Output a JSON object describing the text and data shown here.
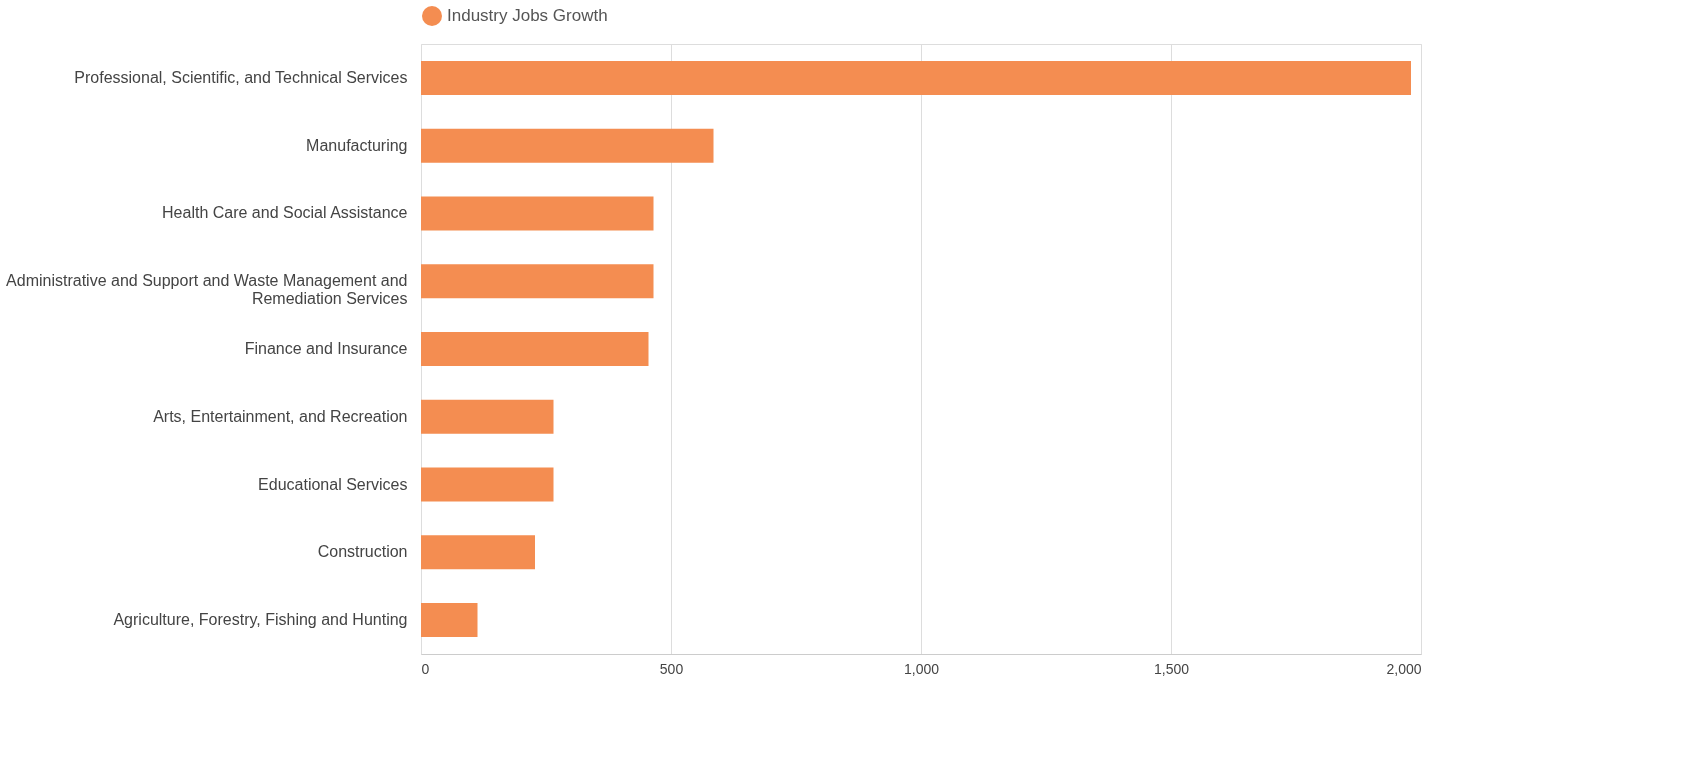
{
  "chart_data": {
    "type": "bar",
    "orientation": "horizontal",
    "categories": [
      "Professional, Scientific, and Technical Services",
      "Manufacturing",
      "Health Care and Social Assistance",
      "Administrative and Support and Waste Management and Remediation Services",
      "Finance and Insurance",
      "Arts, Entertainment, and Recreation",
      "Educational Services",
      "Construction",
      "Agriculture, Forestry, Fishing and Hunting"
    ],
    "series": [
      {
        "name": "Industry Jobs Growth",
        "color": "#f48d51",
        "values": [
          1980,
          585,
          465,
          465,
          455,
          265,
          265,
          228,
          113
        ]
      }
    ],
    "xlim": [
      0,
      2000
    ],
    "xticks": [
      0,
      500,
      {
        "value": 1000,
        "label": "1,000"
      },
      {
        "value": 1500,
        "label": "1,500"
      },
      {
        "value": 2000,
        "label": "2,000"
      }
    ],
    "grid": "x",
    "legend": "top"
  }
}
